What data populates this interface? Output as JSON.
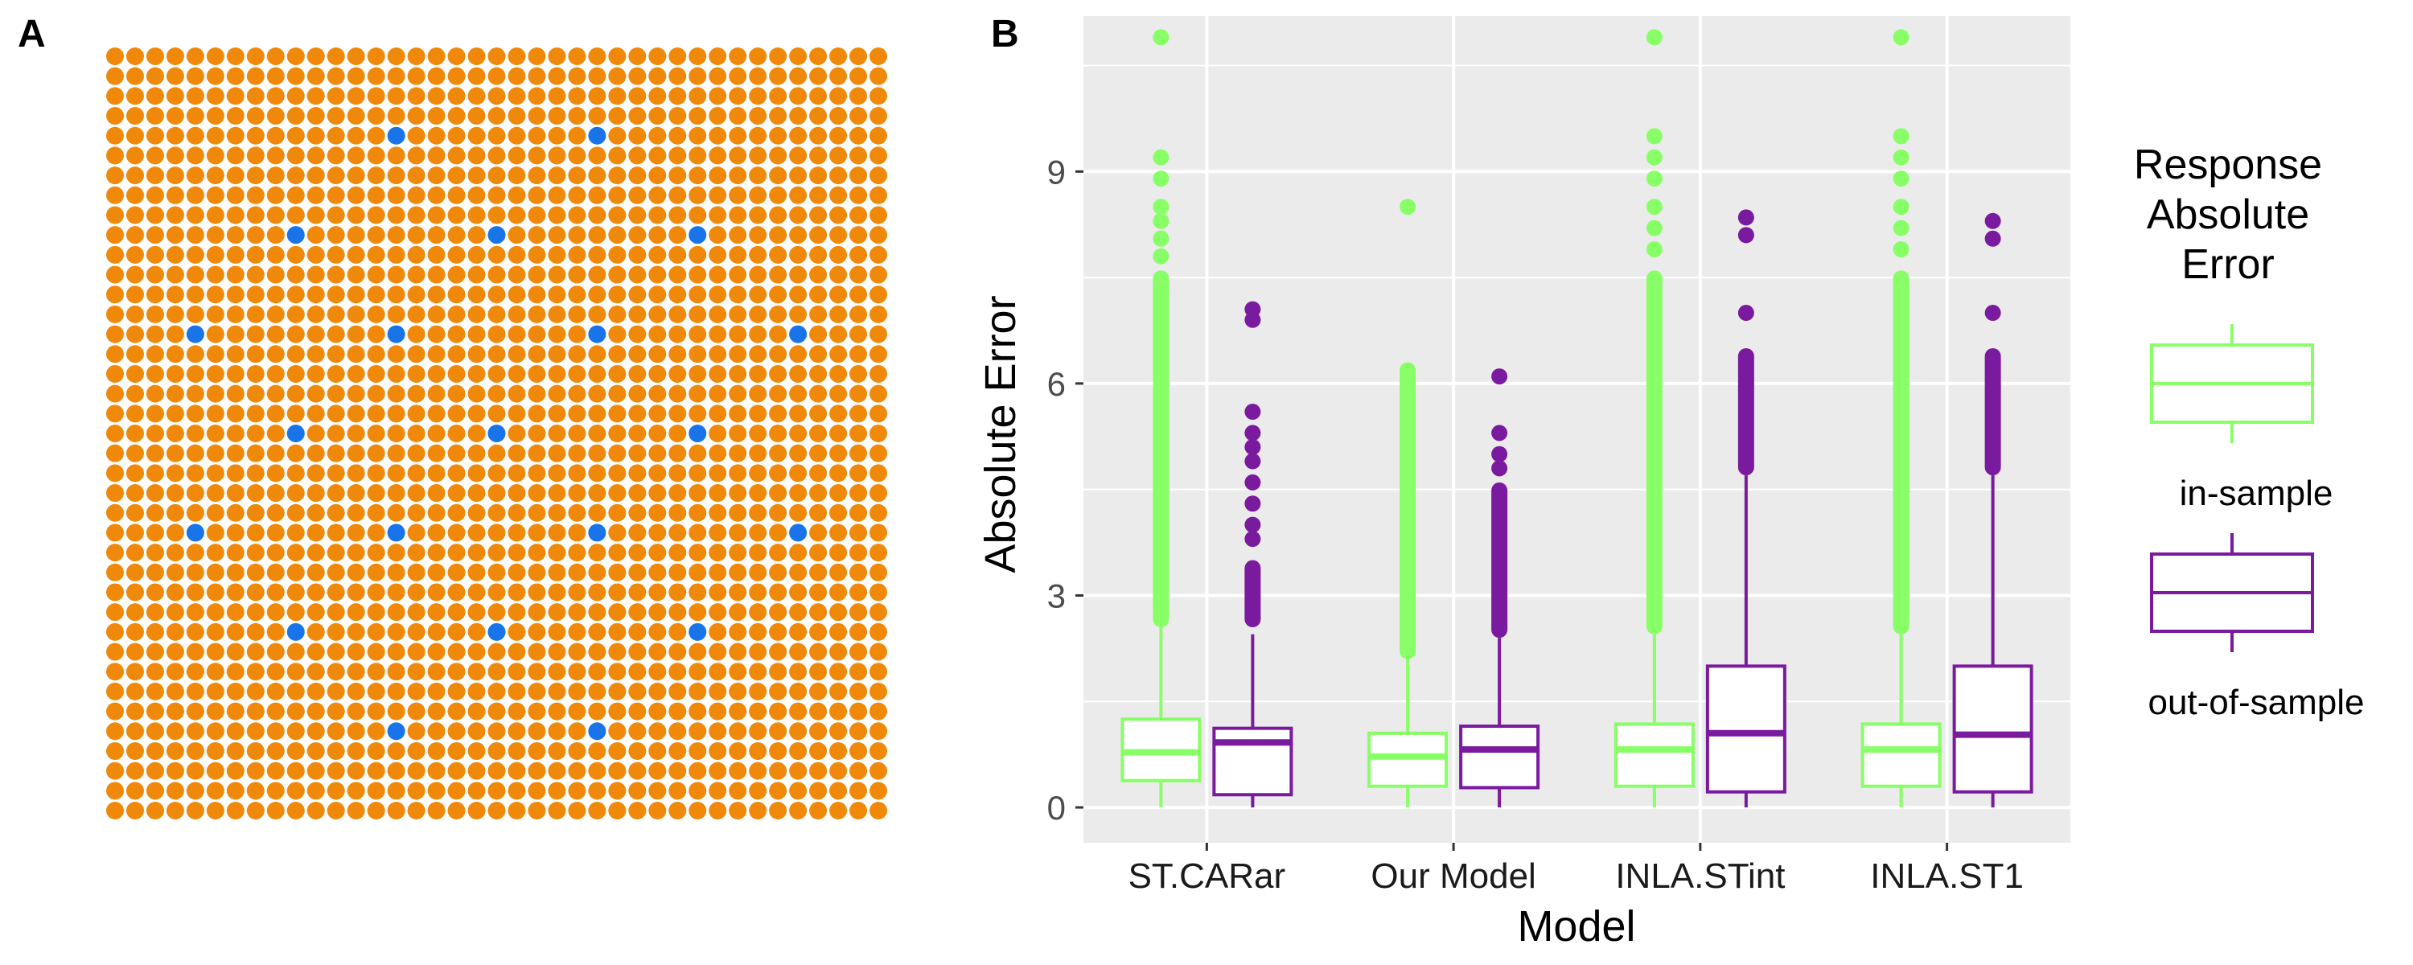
{
  "panels": {
    "a_label": "A",
    "b_label": "B"
  },
  "colors": {
    "grid_point": "#F0890A",
    "sampled_point": "#1874E8",
    "in_sample": "#88FF66",
    "out_of_sample": "#7A1A9E",
    "panel_bg": "#EBEBEB",
    "gridline": "#FFFFFF"
  },
  "chart_data": [
    {
      "type": "scatter",
      "panel": "A",
      "grid_rows": 39,
      "grid_cols": 39,
      "highlighted_points": [
        {
          "row": 4,
          "col": 14
        },
        {
          "row": 4,
          "col": 24
        },
        {
          "row": 9,
          "col": 9
        },
        {
          "row": 9,
          "col": 19
        },
        {
          "row": 9,
          "col": 29
        },
        {
          "row": 14,
          "col": 4
        },
        {
          "row": 14,
          "col": 14
        },
        {
          "row": 14,
          "col": 24
        },
        {
          "row": 14,
          "col": 34
        },
        {
          "row": 19,
          "col": 9
        },
        {
          "row": 19,
          "col": 19
        },
        {
          "row": 19,
          "col": 29
        },
        {
          "row": 24,
          "col": 4
        },
        {
          "row": 24,
          "col": 14
        },
        {
          "row": 24,
          "col": 24
        },
        {
          "row": 24,
          "col": 34
        },
        {
          "row": 29,
          "col": 9
        },
        {
          "row": 29,
          "col": 19
        },
        {
          "row": 29,
          "col": 29
        },
        {
          "row": 34,
          "col": 14
        },
        {
          "row": 34,
          "col": 24
        }
      ]
    },
    {
      "type": "box",
      "panel": "B",
      "xlabel": "Model",
      "ylabel": "Absolute Error",
      "categories": [
        "ST.CARar",
        "Our Model",
        "INLA.STint",
        "INLA.ST1"
      ],
      "yticks": [
        0,
        3,
        6,
        9
      ],
      "ylim": [
        -0.5,
        11.2
      ],
      "legend": {
        "title": [
          "Response",
          "Absolute",
          "Error"
        ],
        "entries": [
          "in-sample",
          "out-of-sample"
        ],
        "position": "right"
      },
      "series": [
        {
          "name": "in-sample",
          "boxes": [
            {
              "whisker_low": 0.0,
              "q1": 0.38,
              "median": 0.78,
              "q3": 1.25,
              "whisker_high": 2.55,
              "outliers_from": 2.55,
              "outliers_to": 7.6,
              "extra_outliers": [
                7.8,
                8.05,
                8.3,
                8.5,
                8.9,
                9.2,
                10.9
              ]
            },
            {
              "whisker_low": 0.0,
              "q1": 0.3,
              "median": 0.72,
              "q3": 1.05,
              "whisker_high": 2.1,
              "outliers_from": 2.1,
              "outliers_to": 6.3,
              "extra_outliers": [
                8.5
              ]
            },
            {
              "whisker_low": 0.0,
              "q1": 0.3,
              "median": 0.82,
              "q3": 1.18,
              "whisker_high": 2.45,
              "outliers_from": 2.45,
              "outliers_to": 7.6,
              "extra_outliers": [
                7.9,
                8.2,
                8.5,
                8.9,
                9.2,
                9.5,
                10.9
              ]
            },
            {
              "whisker_low": 0.0,
              "q1": 0.3,
              "median": 0.82,
              "q3": 1.18,
              "whisker_high": 2.45,
              "outliers_from": 2.45,
              "outliers_to": 7.6,
              "extra_outliers": [
                7.9,
                8.2,
                8.5,
                8.9,
                9.2,
                9.5,
                10.9
              ]
            }
          ]
        },
        {
          "name": "out-of-sample",
          "boxes": [
            {
              "whisker_low": 0.0,
              "q1": 0.18,
              "median": 0.92,
              "q3": 1.12,
              "whisker_high": 2.45,
              "outliers_from": 2.55,
              "outliers_to": 3.5,
              "extra_outliers": [
                3.8,
                4.0,
                4.3,
                4.6,
                4.9,
                5.1,
                5.3,
                5.6,
                6.9,
                7.05
              ]
            },
            {
              "whisker_low": 0.0,
              "q1": 0.28,
              "median": 0.82,
              "q3": 1.15,
              "whisker_high": 2.4,
              "outliers_from": 2.4,
              "outliers_to": 4.6,
              "extra_outliers": [
                4.8,
                5.0,
                5.3,
                6.1
              ]
            },
            {
              "whisker_low": 0.0,
              "q1": 0.22,
              "median": 1.05,
              "q3": 2.0,
              "whisker_high": 4.7,
              "outliers_from": 4.7,
              "outliers_to": 6.5,
              "extra_outliers": [
                7.0,
                8.1,
                8.35
              ]
            },
            {
              "whisker_low": 0.0,
              "q1": 0.22,
              "median": 1.03,
              "q3": 2.0,
              "whisker_high": 4.7,
              "outliers_from": 4.7,
              "outliers_to": 6.5,
              "extra_outliers": [
                7.0,
                8.05,
                8.3
              ]
            }
          ]
        }
      ]
    }
  ]
}
